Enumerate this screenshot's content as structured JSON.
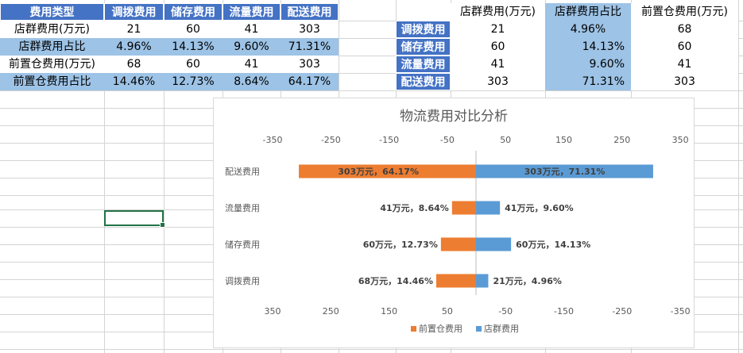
{
  "table1": {
    "header": [
      "费用类型",
      "调拨费用",
      "储存费用",
      "流量费用",
      "配送费用"
    ],
    "rows": [
      {
        "label": "店群费用(万元)",
        "values": [
          "21",
          "60",
          "41",
          "303"
        ]
      },
      {
        "label": "店群费用占比",
        "values": [
          "4.96%",
          "14.13%",
          "9.60%",
          "71.31%"
        ]
      },
      {
        "label": "前置仓费用(万元)",
        "values": [
          "68",
          "60",
          "41",
          "303"
        ]
      },
      {
        "label": "前置仓费用占比",
        "values": [
          "14.46%",
          "12.73%",
          "8.64%",
          "64.17%"
        ]
      }
    ]
  },
  "table2": {
    "header": [
      "店群费用(万元)",
      "店群费用占比",
      "前置仓费用(万元)"
    ],
    "rows": [
      {
        "label": "调拨费用",
        "values": [
          "21",
          "4.96%",
          "68"
        ]
      },
      {
        "label": "储存费用",
        "values": [
          "60",
          "14.13%",
          "60"
        ]
      },
      {
        "label": "流量费用",
        "values": [
          "41",
          "9.60%",
          "41"
        ]
      },
      {
        "label": "配送费用",
        "values": [
          "303",
          "71.31%",
          "303"
        ]
      }
    ]
  },
  "chart_data": {
    "type": "bar",
    "orientation": "horizontal-butterfly",
    "title": "物流费用对比分析",
    "categories": [
      "配送费用",
      "流量费用",
      "储存费用",
      "调拨费用"
    ],
    "series": [
      {
        "name": "前置仓费用",
        "color": "#ed7d31",
        "values": [
          303,
          41,
          60,
          68
        ],
        "labels": [
          "303万元，64.17%",
          "41万元，8.64%",
          "60万元，12.73%",
          "68万元，14.46%"
        ]
      },
      {
        "name": "店群费用",
        "color": "#5b9bd5",
        "values": [
          303,
          41,
          60,
          21
        ],
        "labels": [
          "303万元，71.31%",
          "41万元，9.60%",
          "60万元，14.13%",
          "21万元，4.96%"
        ]
      }
    ],
    "top_ticks": [
      "-350",
      "-250",
      "-150",
      "-50",
      "50",
      "150",
      "250",
      "350"
    ],
    "bottom_ticks": [
      "350",
      "250",
      "150",
      "50",
      "-50",
      "-150",
      "-250",
      "-350"
    ],
    "xlim": [
      -350,
      350
    ],
    "legend": "bottom",
    "grid": false
  }
}
